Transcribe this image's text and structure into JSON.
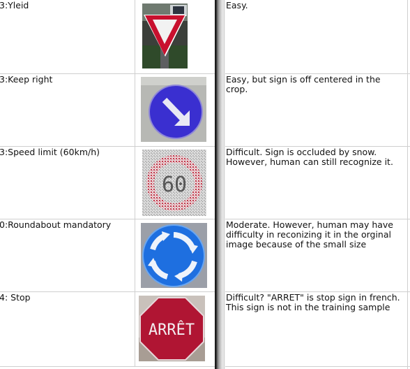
{
  "rows": [
    {
      "label": "3:Yleid",
      "comment": "Easy.",
      "image": "yield-sign-icon"
    },
    {
      "label": "3:Keep right",
      "comment": "Easy, but sign is off centered in the crop.",
      "image": "keep-right-sign-icon"
    },
    {
      "label": "3:Speed limit (60km/h)",
      "comment": "Difficult. Sign is occluded by snow. However, human can still recognize it.",
      "image": "speed-limit-sign-icon"
    },
    {
      "label": "0:Roundabout mandatory",
      "comment": "Moderate. However, human may have difficulty in reconizing it in the orginal image because of the small size",
      "image": "roundabout-sign-icon"
    },
    {
      "label": "4: Stop",
      "comment": "Difficult? \"ARRET\" is stop sign in french. This sign is not in the training sample",
      "image": "stop-sign-icon",
      "sign_text": "ARRÊT"
    }
  ],
  "colors": {
    "yield_red": "#c8102e",
    "keep_right_blue": "#3a2fd0",
    "roundabout_blue": "#1e6fe0",
    "stop_red": "#b01533",
    "grid_line": "#cfcfcf"
  }
}
